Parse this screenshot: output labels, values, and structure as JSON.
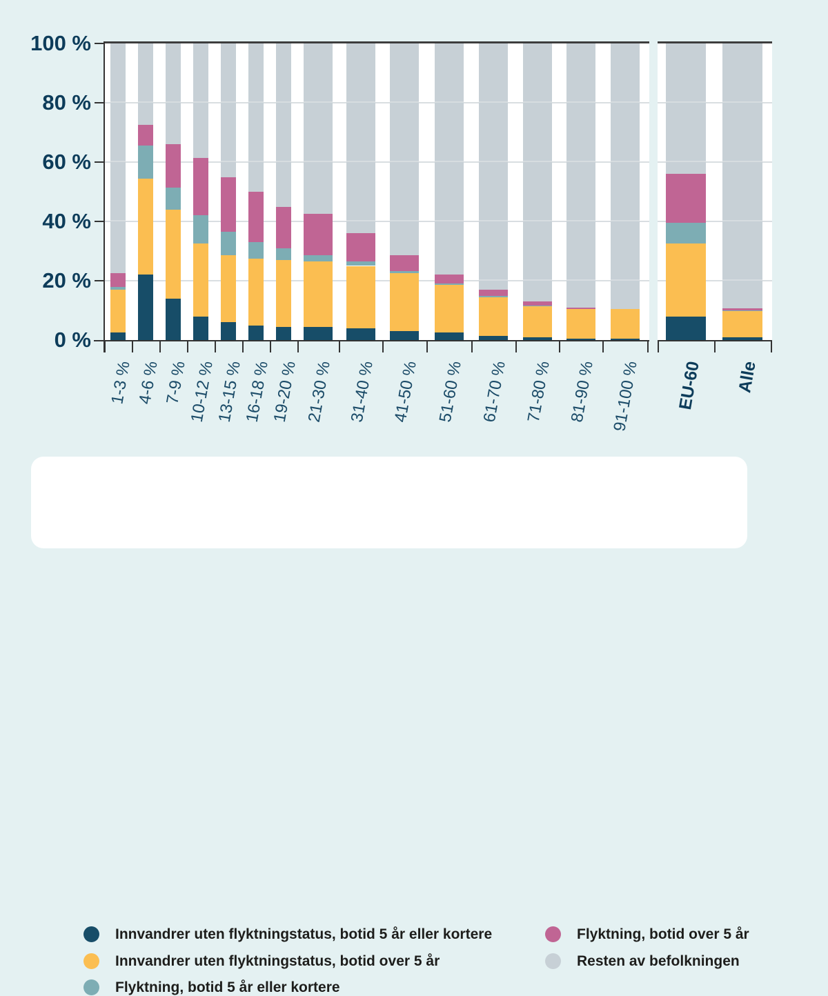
{
  "page": {
    "background": "#e4f1f2"
  },
  "chart_data": {
    "type": "bar",
    "stacked": true,
    "unit": "%",
    "ylim": [
      0,
      100
    ],
    "ytick_labels": [
      "0 %",
      "20 %",
      "40 %",
      "60 %",
      "80 %",
      "100 %"
    ],
    "grid": "horizontal gridlines at 20/40/60/80, dark baseline at 0 and top line at 100",
    "legend_position": "bottom card, two columns",
    "categories": [
      "1-3 %",
      "4-6 %",
      "7-9 %",
      "10-12 %",
      "13-15 %",
      "16-18 %",
      "19-20 %",
      "21-30 %",
      "31-40 %",
      "41-50 %",
      "51-60 %",
      "61-70 %",
      "71-80 %",
      "81-90 %",
      "91-100 %"
    ],
    "separate_categories": [
      "EU-60",
      "Alle"
    ],
    "series": [
      {
        "name": "Innvandrer uten flyktningstatus, botid 5 år eller kortere",
        "color": "#174d68",
        "values": [
          2.5,
          22,
          14,
          8,
          6,
          5,
          4.5,
          4.5,
          4,
          3,
          2.5,
          1.5,
          1,
          0.5,
          0.5
        ],
        "separate_values": [
          8,
          1
        ]
      },
      {
        "name": "Innvandrer uten flyktningstatus, botid over 5 år",
        "color": "#fbbe51",
        "values": [
          14.5,
          32.5,
          30,
          24.5,
          22.5,
          22.5,
          22.5,
          22,
          21,
          19.5,
          16,
          13,
          10.5,
          10,
          10
        ],
        "separate_values": [
          24.5,
          8.8
        ]
      },
      {
        "name": "Flyktning, botid 5 år eller kortere",
        "color": "#7dadb4",
        "values": [
          1,
          11,
          7.5,
          9.5,
          8,
          5.5,
          4,
          2,
          1.5,
          0.7,
          0.5,
          0.3,
          0.2,
          0,
          0
        ],
        "separate_values": [
          7,
          0.2
        ]
      },
      {
        "name": "Flyktning, botid over 5 år",
        "color": "#c06594",
        "values": [
          4.5,
          7,
          14.5,
          19.5,
          18.5,
          17,
          14,
          14,
          9.5,
          5.3,
          3,
          2.2,
          1.3,
          0.5,
          0
        ],
        "separate_values": [
          16.5,
          0.6
        ]
      },
      {
        "name": "Resten av befolkningen",
        "color": "#c7d0d6",
        "values": [
          77.5,
          27.5,
          34,
          38.5,
          45,
          50,
          55,
          57.5,
          64,
          71.5,
          78,
          83,
          87,
          89,
          89.5
        ],
        "separate_values": [
          44,
          89.4
        ]
      }
    ]
  },
  "legend": {
    "items": [
      {
        "label": "Innvandrer uten flyktningstatus, botid 5 år eller kortere",
        "color": "#174d68"
      },
      {
        "label": "Innvandrer uten flyktningstatus, botid over 5 år",
        "color": "#fbbe51"
      },
      {
        "label": "Flyktning, botid 5 år eller kortere",
        "color": "#7dadb4"
      },
      {
        "label": "Flyktning, botid over 5 år",
        "color": "#c06594"
      },
      {
        "label": "Resten av befolkningen",
        "color": "#c7d0d6"
      }
    ]
  }
}
